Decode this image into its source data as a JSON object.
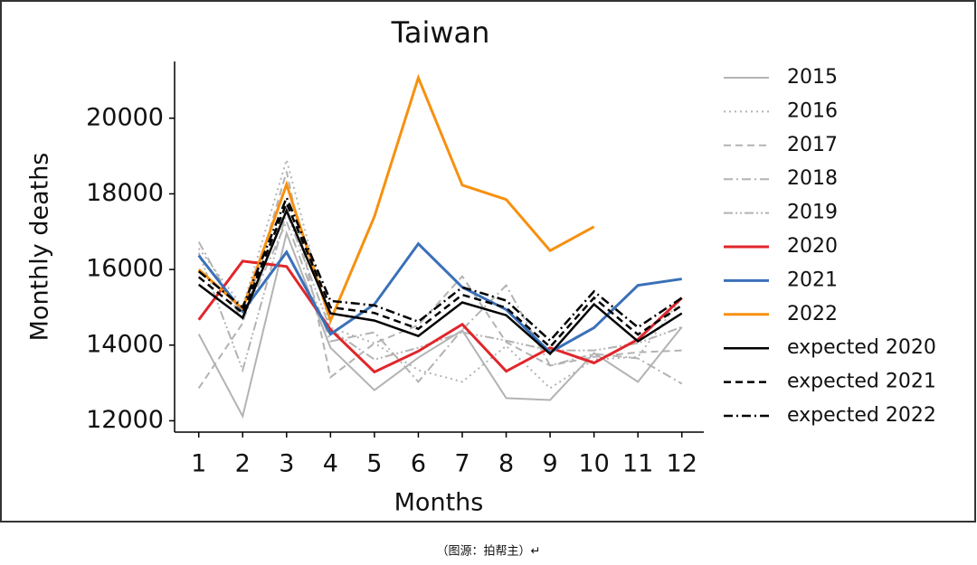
{
  "chart_data": {
    "type": "line",
    "title": "Taiwan",
    "xlabel": "Months",
    "ylabel": "Monthly deaths",
    "x": [
      1,
      2,
      3,
      4,
      5,
      6,
      7,
      8,
      9,
      10,
      11,
      12
    ],
    "xlim": [
      0.45,
      12.5
    ],
    "xticks": [
      1,
      2,
      3,
      4,
      5,
      6,
      7,
      8,
      9,
      10,
      11,
      12
    ],
    "ylim": [
      11700,
      21500
    ],
    "yticks": [
      12000,
      14000,
      16000,
      18000,
      20000
    ],
    "grid": false,
    "legend": "outside right",
    "series": [
      {
        "name": "2015",
        "color": "#b3b3b3",
        "linestyle": "solid",
        "values": [
          14290,
          12120,
          16960,
          13930,
          12810,
          13670,
          14390,
          12600,
          12550,
          13790,
          13030,
          14480
        ]
      },
      {
        "name": "2016",
        "color": "#b3b3b3",
        "linestyle": "dotted",
        "values": [
          16560,
          15010,
          18900,
          14460,
          14050,
          13340,
          13030,
          13980,
          12860,
          13620,
          13690,
          15250
        ]
      },
      {
        "name": "2017",
        "color": "#b3b3b3",
        "linestyle": "dashed",
        "values": [
          12860,
          14580,
          18590,
          13150,
          14050,
          14530,
          15820,
          14080,
          13460,
          13690,
          13810,
          13860
        ]
      },
      {
        "name": "2018",
        "color": "#b3b3b3",
        "linestyle": "dashdot",
        "values": [
          16730,
          14650,
          17270,
          14100,
          14340,
          13030,
          14410,
          15580,
          13460,
          13770,
          13650,
          12980
        ]
      },
      {
        "name": "2019",
        "color": "#b3b3b3",
        "linestyle": "dashdotdot",
        "values": [
          16440,
          13340,
          17510,
          14410,
          13620,
          13930,
          14340,
          14120,
          13860,
          13860,
          14050,
          14480
        ]
      },
      {
        "name": "2020",
        "color": "#e0262b",
        "linestyle": "solid",
        "values": [
          14670,
          16220,
          16080,
          14410,
          13290,
          13840,
          14550,
          13310,
          13930,
          13530,
          14150,
          15250
        ]
      },
      {
        "name": "2021",
        "color": "#3a70b8",
        "linestyle": "solid",
        "values": [
          16370,
          14890,
          16460,
          14290,
          15080,
          16680,
          15530,
          14940,
          13810,
          14460,
          15580,
          15750
        ]
      },
      {
        "name": "2022",
        "color": "#f7900f",
        "linestyle": "solid",
        "values": [
          16000,
          14960,
          18250,
          14650,
          17400,
          21070,
          18230,
          17850,
          16500,
          17130,
          null,
          null
        ]
      },
      {
        "name": "expected 2020",
        "color": "#000000",
        "linestyle": "solid",
        "values": [
          15600,
          14720,
          17560,
          14840,
          14650,
          14240,
          15130,
          14790,
          13770,
          15080,
          14100,
          14840
        ]
      },
      {
        "name": "expected 2021",
        "color": "#000000",
        "linestyle": "dashed",
        "values": [
          15800,
          14850,
          17750,
          15000,
          14850,
          14430,
          15330,
          14990,
          13950,
          15250,
          14280,
          15050
        ]
      },
      {
        "name": "expected 2022",
        "color": "#000000",
        "linestyle": "dashdot",
        "values": [
          15950,
          15000,
          17900,
          15170,
          15050,
          14620,
          15530,
          15180,
          14120,
          15420,
          14470,
          15250
        ]
      }
    ]
  },
  "caption": "（图源：拍帮主）↵"
}
